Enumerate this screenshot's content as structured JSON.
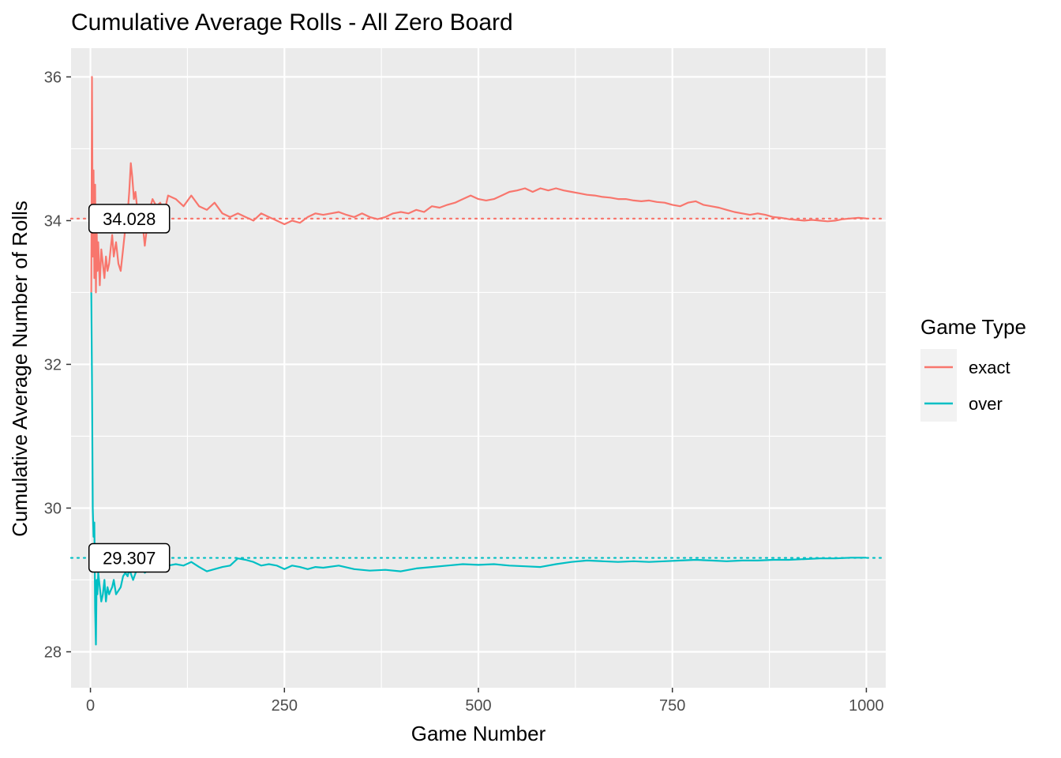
{
  "chart_data": {
    "type": "line",
    "title": "Cumulative Average Rolls - All Zero Board",
    "xlabel": "Game Number",
    "ylabel": "Cumulative Average Number of Rolls",
    "xlim": [
      -25,
      1025
    ],
    "ylim": [
      27.5,
      36.4
    ],
    "x_ticks": [
      0,
      250,
      500,
      750,
      1000
    ],
    "x_tick_labels": [
      "0",
      "250",
      "500",
      "750",
      "1000"
    ],
    "y_ticks": [
      28,
      30,
      32,
      34,
      36
    ],
    "y_tick_labels": [
      "28",
      "30",
      "32",
      "34",
      "36"
    ],
    "grid": true,
    "panel_background": "#ebebeb",
    "legend": {
      "title": "Game Type",
      "placement": "right",
      "entries": [
        "exact",
        "over"
      ]
    },
    "series": [
      {
        "name": "exact",
        "color": "#f8766d",
        "mean": 34.028,
        "mean_label": "34.028",
        "x": [
          1,
          2,
          3,
          4,
          5,
          6,
          7,
          8,
          9,
          10,
          12,
          14,
          16,
          18,
          20,
          22,
          24,
          26,
          28,
          30,
          33,
          36,
          39,
          42,
          45,
          48,
          50,
          52,
          54,
          56,
          58,
          60,
          63,
          66,
          70,
          75,
          80,
          85,
          90,
          95,
          100,
          110,
          120,
          130,
          140,
          150,
          160,
          170,
          180,
          190,
          200,
          210,
          220,
          230,
          240,
          250,
          260,
          270,
          280,
          290,
          300,
          310,
          320,
          330,
          340,
          350,
          360,
          370,
          380,
          390,
          400,
          410,
          420,
          430,
          440,
          450,
          460,
          470,
          480,
          490,
          500,
          510,
          520,
          530,
          540,
          550,
          560,
          570,
          580,
          590,
          600,
          610,
          620,
          630,
          640,
          650,
          660,
          670,
          680,
          690,
          700,
          710,
          720,
          730,
          740,
          750,
          760,
          770,
          780,
          790,
          800,
          810,
          820,
          830,
          840,
          850,
          860,
          870,
          880,
          890,
          900,
          910,
          920,
          930,
          940,
          950,
          960,
          970,
          980,
          990,
          1000
        ],
        "values": [
          33.0,
          36.0,
          33.5,
          34.7,
          33.2,
          34.5,
          33.0,
          33.9,
          33.3,
          33.7,
          33.1,
          33.6,
          33.4,
          33.2,
          33.5,
          33.3,
          33.4,
          33.6,
          33.8,
          33.5,
          33.7,
          33.4,
          33.3,
          33.6,
          33.9,
          34.1,
          34.4,
          34.8,
          34.6,
          34.3,
          34.4,
          34.2,
          34.0,
          34.1,
          33.65,
          34.1,
          34.3,
          34.2,
          34.25,
          34.1,
          34.35,
          34.3,
          34.2,
          34.35,
          34.2,
          34.15,
          34.25,
          34.1,
          34.05,
          34.1,
          34.05,
          34.0,
          34.1,
          34.05,
          34.0,
          33.95,
          34.0,
          33.97,
          34.05,
          34.1,
          34.08,
          34.1,
          34.12,
          34.08,
          34.05,
          34.1,
          34.05,
          34.02,
          34.05,
          34.1,
          34.12,
          34.1,
          34.15,
          34.12,
          34.2,
          34.18,
          34.22,
          34.25,
          34.3,
          34.35,
          34.3,
          34.28,
          34.3,
          34.35,
          34.4,
          34.42,
          34.45,
          34.4,
          34.45,
          34.42,
          34.45,
          34.42,
          34.4,
          34.38,
          34.36,
          34.35,
          34.33,
          34.32,
          34.3,
          34.3,
          34.28,
          34.27,
          34.28,
          34.26,
          34.25,
          34.22,
          34.2,
          34.25,
          34.27,
          34.22,
          34.2,
          34.18,
          34.15,
          34.12,
          34.1,
          34.08,
          34.1,
          34.08,
          34.05,
          34.04,
          34.02,
          34.01,
          34.0,
          34.01,
          34.0,
          33.99,
          34.0,
          34.02,
          34.03,
          34.04,
          34.03
        ],
        "legend_label": "exact"
      },
      {
        "name": "over",
        "color": "#00bfc4",
        "mean": 29.307,
        "mean_label": "29.307",
        "x": [
          1,
          2,
          3,
          4,
          5,
          6,
          7,
          8,
          9,
          10,
          12,
          14,
          16,
          18,
          20,
          22,
          24,
          26,
          28,
          30,
          33,
          36,
          39,
          42,
          45,
          48,
          50,
          55,
          60,
          65,
          70,
          75,
          80,
          90,
          100,
          110,
          120,
          130,
          140,
          150,
          160,
          170,
          180,
          190,
          200,
          210,
          220,
          230,
          240,
          250,
          260,
          270,
          280,
          290,
          300,
          320,
          340,
          360,
          380,
          400,
          420,
          440,
          460,
          480,
          500,
          520,
          540,
          560,
          580,
          600,
          620,
          640,
          660,
          680,
          700,
          720,
          740,
          760,
          780,
          800,
          820,
          840,
          860,
          880,
          900,
          920,
          940,
          960,
          980,
          1000
        ],
        "values": [
          33.0,
          31.8,
          30.0,
          29.6,
          29.8,
          28.6,
          28.1,
          29.0,
          28.8,
          29.1,
          28.9,
          28.7,
          28.8,
          29.0,
          28.7,
          28.9,
          28.8,
          28.85,
          28.9,
          29.0,
          28.8,
          28.85,
          28.9,
          29.05,
          29.1,
          29.05,
          29.15,
          29.0,
          29.15,
          29.2,
          29.1,
          29.15,
          29.2,
          29.25,
          29.2,
          29.22,
          29.2,
          29.25,
          29.18,
          29.12,
          29.15,
          29.18,
          29.2,
          29.3,
          29.28,
          29.25,
          29.2,
          29.22,
          29.2,
          29.15,
          29.2,
          29.18,
          29.15,
          29.18,
          29.17,
          29.2,
          29.15,
          29.13,
          29.14,
          29.12,
          29.16,
          29.18,
          29.2,
          29.22,
          29.21,
          29.22,
          29.2,
          29.19,
          29.18,
          29.22,
          29.25,
          29.27,
          29.26,
          29.25,
          29.26,
          29.25,
          29.26,
          29.27,
          29.28,
          29.27,
          29.26,
          29.27,
          29.27,
          29.28,
          29.28,
          29.29,
          29.3,
          29.3,
          29.31,
          29.31
        ],
        "legend_label": "over"
      }
    ]
  }
}
